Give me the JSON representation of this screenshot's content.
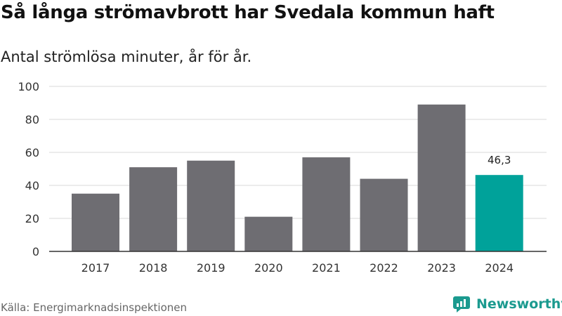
{
  "title": "Så långa strömavbrott har Svedala kommun haft",
  "subtitle": "Antal strömlösa minuter, år för år.",
  "source": "Källa: Energimarknadsinspektionen",
  "logo": {
    "text": "Newsworthy",
    "icon": "newsworthy-chart-icon",
    "color": "#1b9a8f"
  },
  "colors": {
    "bar": "#6e6d72",
    "highlight": "#00a29a",
    "grid": "#d9d9d9",
    "axis": "#333333"
  },
  "chart_data": {
    "type": "bar",
    "categories": [
      "2017",
      "2018",
      "2019",
      "2020",
      "2021",
      "2022",
      "2023",
      "2024"
    ],
    "values": [
      35,
      51,
      55,
      21,
      57,
      44,
      89,
      46.3
    ],
    "highlight_index": 7,
    "data_labels": [
      {
        "index": 7,
        "text": "46,3"
      }
    ],
    "ylim": [
      0,
      100
    ],
    "yticks": [
      0,
      20,
      40,
      60,
      80,
      100
    ],
    "grid": true,
    "xlabel": "",
    "ylabel": ""
  }
}
